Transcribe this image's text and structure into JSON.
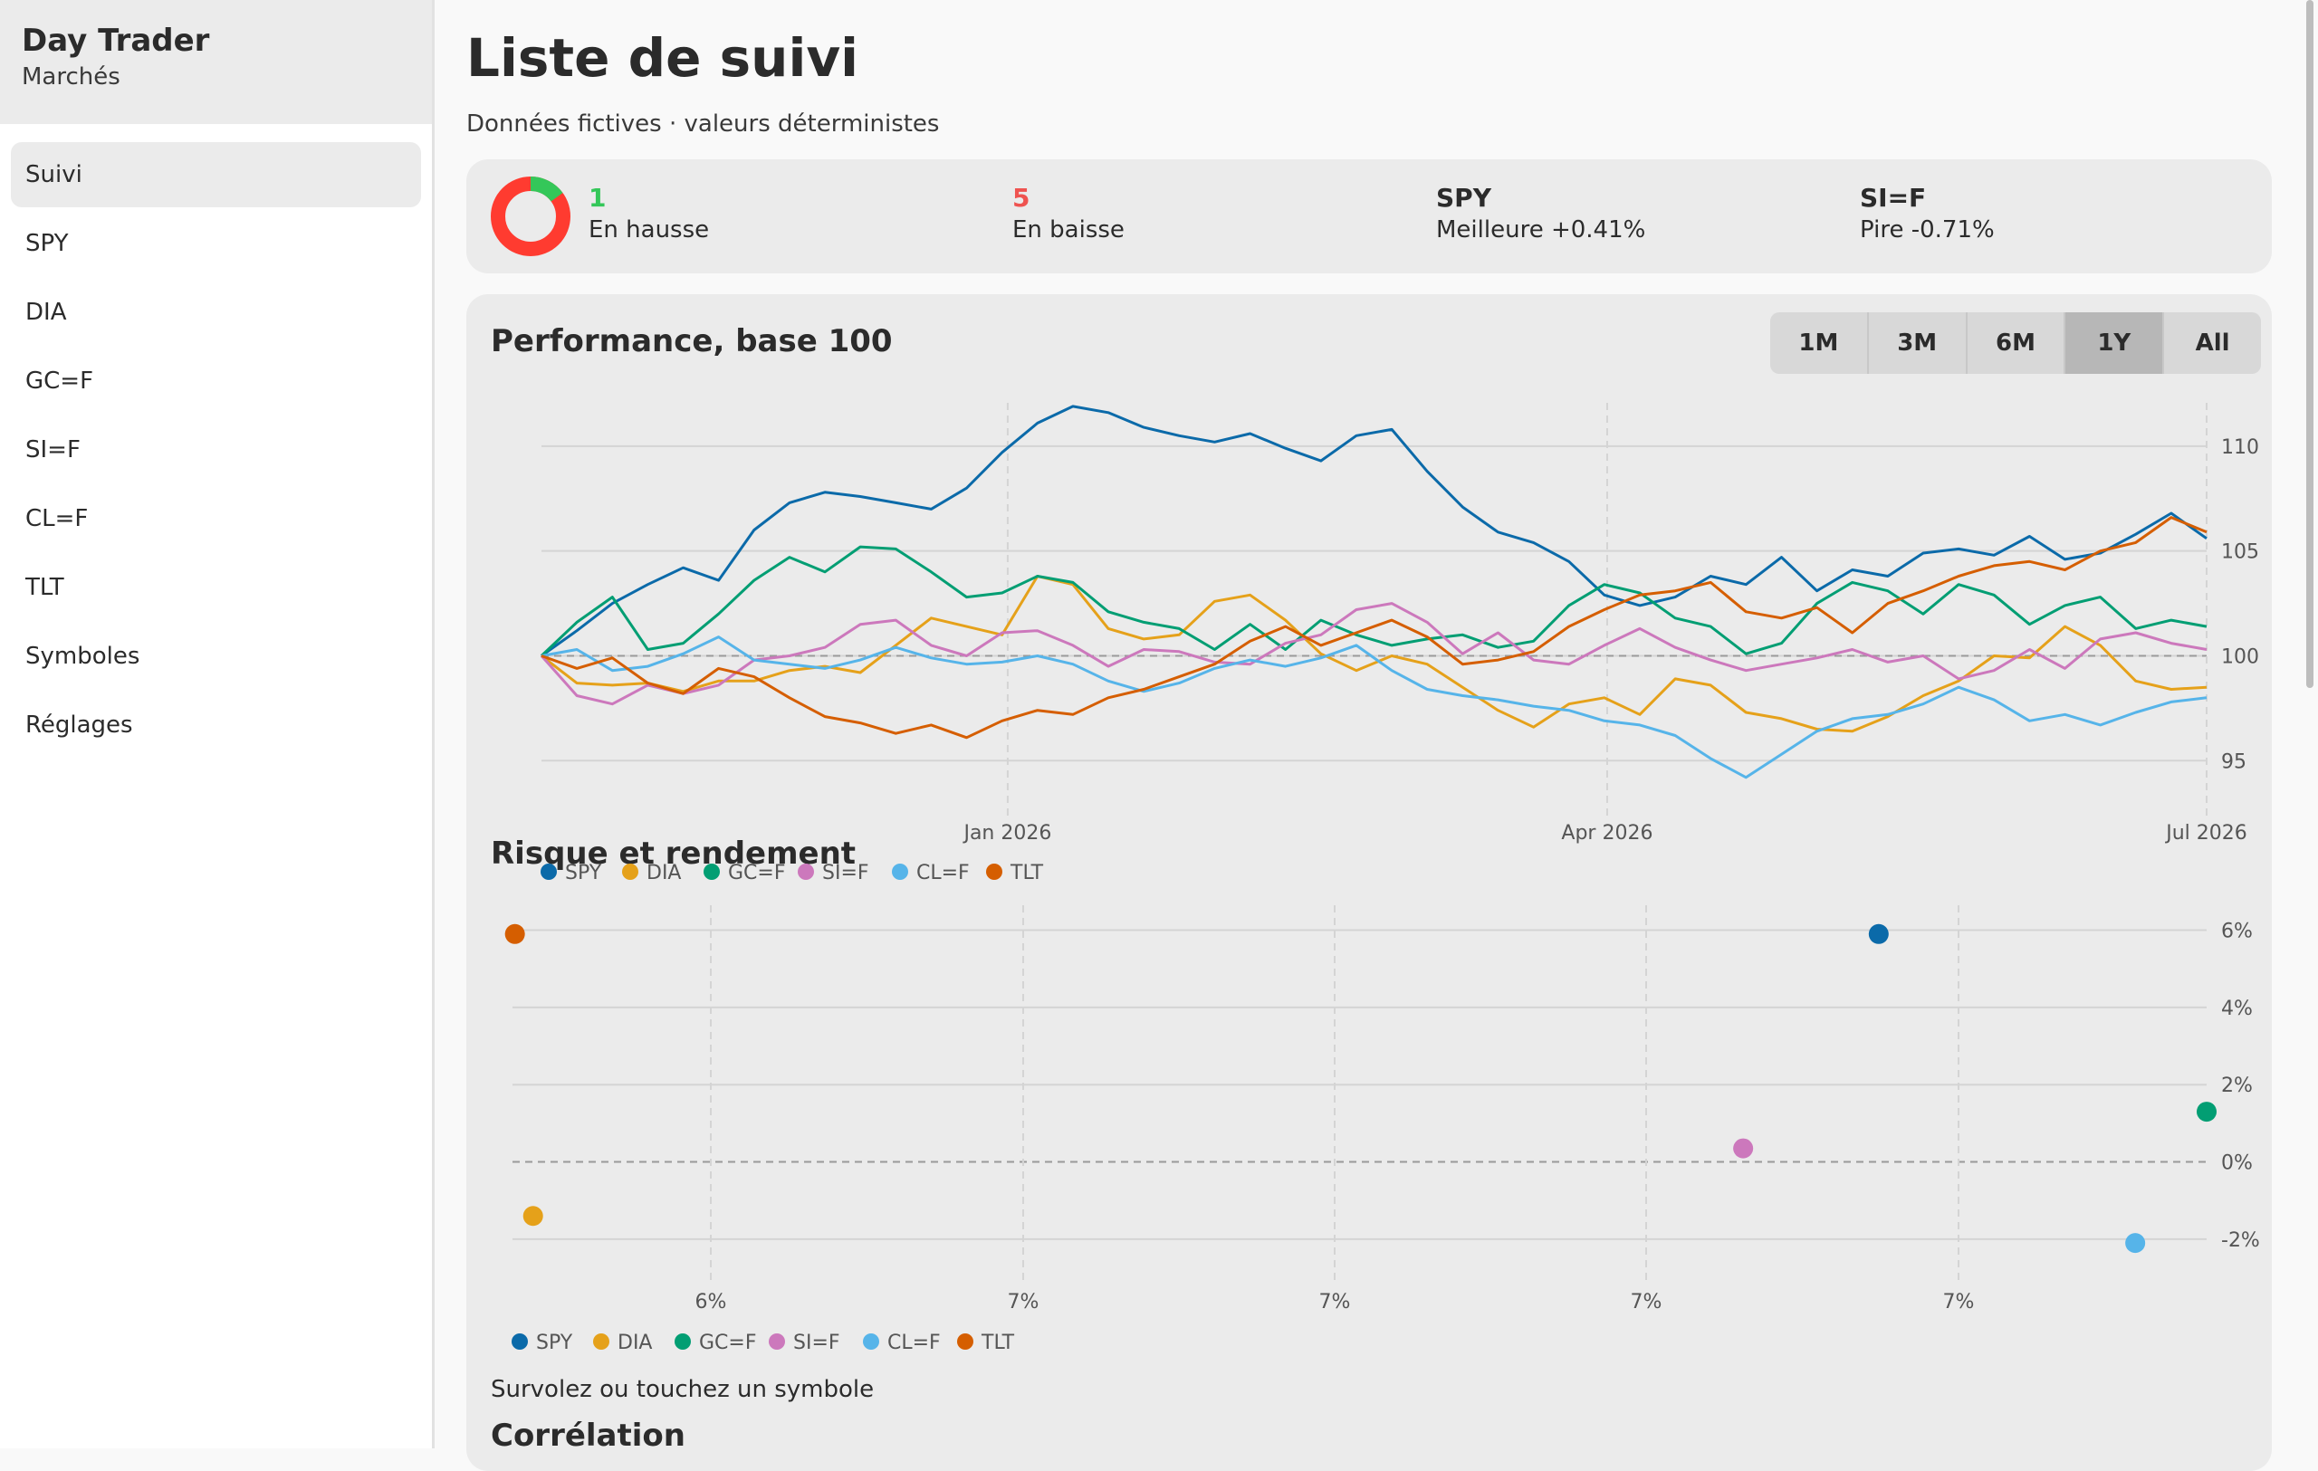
{
  "sidebar": {
    "title": "Day Trader",
    "subtitle": "Marchés",
    "items": [
      {
        "label": "Suivi",
        "active": true
      },
      {
        "label": "SPY"
      },
      {
        "label": "DIA"
      },
      {
        "label": "GC=F"
      },
      {
        "label": "SI=F"
      },
      {
        "label": "CL=F"
      },
      {
        "label": "TLT"
      },
      {
        "label": "Symboles"
      },
      {
        "label": "Réglages"
      }
    ]
  },
  "header": {
    "title": "Liste de suivi",
    "subtitle": "Données fictives · valeurs déterministes"
  },
  "summary": {
    "up_count": "1",
    "up_label": "En hausse",
    "down_count": "5",
    "down_label": "En baisse",
    "best_symbol": "SPY",
    "best_label": "Meilleure +0.41%",
    "worst_symbol": "SI=F",
    "worst_label": "Pire -0.71%",
    "colors": {
      "up": "#34c759",
      "down": "#ff3b30"
    }
  },
  "performance": {
    "title": "Performance, base 100",
    "ranges": [
      "1M",
      "3M",
      "6M",
      "1Y",
      "All"
    ],
    "active_range": "1Y"
  },
  "risk": {
    "title": "Risque et rendement"
  },
  "hover_hint": "Survolez ou touchez un symbole",
  "correlation": {
    "title": "Corrélation"
  },
  "chart_data": [
    {
      "type": "line",
      "title": "Performance, base 100",
      "x_ticks": [
        "Jan 2026",
        "Apr 2026",
        "Jul 2026"
      ],
      "y_ticks": [
        95,
        100,
        105,
        110
      ],
      "ylim": [
        93.5,
        112.5
      ],
      "grid": true,
      "legend": "bottom-left",
      "series": [
        {
          "name": "SPY",
          "color": "#0b6aa9",
          "values": [
            100,
            101.2,
            102.5,
            103.4,
            104.2,
            103.6,
            106.0,
            107.3,
            107.8,
            107.6,
            107.3,
            107.0,
            108.0,
            109.7,
            111.1,
            111.9,
            111.6,
            110.9,
            110.5,
            110.2,
            110.6,
            109.9,
            109.3,
            110.5,
            110.8,
            108.8,
            107.1,
            105.9,
            105.4,
            104.5,
            102.9,
            102.4,
            102.8,
            103.8,
            103.4,
            104.7,
            103.1,
            104.1,
            103.8,
            104.9,
            105.1,
            104.8,
            105.7,
            104.6,
            104.9,
            105.8,
            106.8,
            105.6
          ]
        },
        {
          "name": "DIA",
          "color": "#e5a11a",
          "values": [
            100,
            98.7,
            98.6,
            98.7,
            98.3,
            98.8,
            98.8,
            99.3,
            99.5,
            99.2,
            100.5,
            101.8,
            101.4,
            101.0,
            103.8,
            103.4,
            101.3,
            100.8,
            101.0,
            102.6,
            102.9,
            101.7,
            100.1,
            99.3,
            100.0,
            99.6,
            98.5,
            97.4,
            96.6,
            97.7,
            98.0,
            97.2,
            98.9,
            98.6,
            97.3,
            97.0,
            96.5,
            96.4,
            97.1,
            98.1,
            98.8,
            100.0,
            99.9,
            101.4,
            100.5,
            98.8,
            98.4,
            98.5
          ]
        },
        {
          "name": "GC=F",
          "color": "#029e73",
          "values": [
            100,
            101.6,
            102.8,
            100.3,
            100.6,
            102.0,
            103.6,
            104.7,
            104.0,
            105.2,
            105.1,
            104.0,
            102.8,
            103.0,
            103.8,
            103.5,
            102.1,
            101.6,
            101.3,
            100.3,
            101.5,
            100.3,
            101.7,
            101.0,
            100.5,
            100.8,
            101.0,
            100.4,
            100.7,
            102.4,
            103.4,
            103.0,
            101.8,
            101.4,
            100.1,
            100.6,
            102.5,
            103.5,
            103.1,
            102.0,
            103.4,
            102.9,
            101.5,
            102.4,
            102.8,
            101.3,
            101.7,
            101.4
          ]
        },
        {
          "name": "SI=F",
          "color": "#cc78bc",
          "values": [
            100,
            98.1,
            97.7,
            98.6,
            98.2,
            98.6,
            99.8,
            100.0,
            100.4,
            101.5,
            101.7,
            100.5,
            100.0,
            101.1,
            101.2,
            100.5,
            99.5,
            100.3,
            100.2,
            99.7,
            99.6,
            100.6,
            101.0,
            102.2,
            102.5,
            101.6,
            100.1,
            101.1,
            99.8,
            99.6,
            100.5,
            101.3,
            100.4,
            99.8,
            99.3,
            99.6,
            99.9,
            100.3,
            99.7,
            100.0,
            98.9,
            99.3,
            100.3,
            99.4,
            100.8,
            101.1,
            100.6,
            100.3
          ]
        },
        {
          "name": "CL=F",
          "color": "#56b4e9",
          "values": [
            100,
            100.3,
            99.3,
            99.5,
            100.1,
            100.9,
            99.8,
            99.6,
            99.4,
            99.8,
            100.4,
            99.9,
            99.6,
            99.7,
            100.0,
            99.6,
            98.8,
            98.3,
            98.7,
            99.4,
            99.8,
            99.5,
            99.9,
            100.5,
            99.3,
            98.4,
            98.1,
            97.9,
            97.6,
            97.4,
            96.9,
            96.7,
            96.2,
            95.1,
            94.2,
            95.3,
            96.4,
            97.0,
            97.2,
            97.7,
            98.5,
            97.9,
            96.9,
            97.2,
            96.7,
            97.3,
            97.8,
            98.0
          ]
        },
        {
          "name": "TLT",
          "color": "#d55e00",
          "values": [
            100,
            99.4,
            99.9,
            98.7,
            98.2,
            99.4,
            99.0,
            98.0,
            97.1,
            96.8,
            96.3,
            96.7,
            96.1,
            96.9,
            97.4,
            97.2,
            98.0,
            98.4,
            99.0,
            99.6,
            100.7,
            101.4,
            100.5,
            101.1,
            101.7,
            100.9,
            99.6,
            99.8,
            100.2,
            101.4,
            102.2,
            102.9,
            103.1,
            103.5,
            102.1,
            101.8,
            102.3,
            101.1,
            102.5,
            103.1,
            103.8,
            104.3,
            104.5,
            104.1,
            105.0,
            105.4,
            106.6,
            105.9
          ]
        }
      ]
    },
    {
      "type": "scatter",
      "title": "Risque et rendement",
      "x_ticks": [
        "6%",
        "7%",
        "7%",
        "7%",
        "7%"
      ],
      "y_ticks": [
        "6%",
        "4%",
        "2%",
        "0%",
        "-2%"
      ],
      "ylim": [
        -2.8,
        6.2
      ],
      "grid": true,
      "legend": "bottom-left",
      "series": [
        {
          "name": "SPY",
          "color": "#0b6aa9",
          "x": 6.999,
          "y": 5.9
        },
        {
          "name": "DIA",
          "color": "#e5a11a",
          "x": 5.887,
          "y": -1.4
        },
        {
          "name": "GC=F",
          "color": "#029e73",
          "x": 7.27,
          "y": 1.3
        },
        {
          "name": "SI=F",
          "color": "#cc78bc",
          "x": 6.887,
          "y": 0.35
        },
        {
          "name": "CL=F",
          "color": "#56b4e9",
          "x": 7.211,
          "y": -2.1
        },
        {
          "name": "TLT",
          "color": "#d55e00",
          "x": 5.872,
          "y": 5.9
        }
      ]
    }
  ]
}
